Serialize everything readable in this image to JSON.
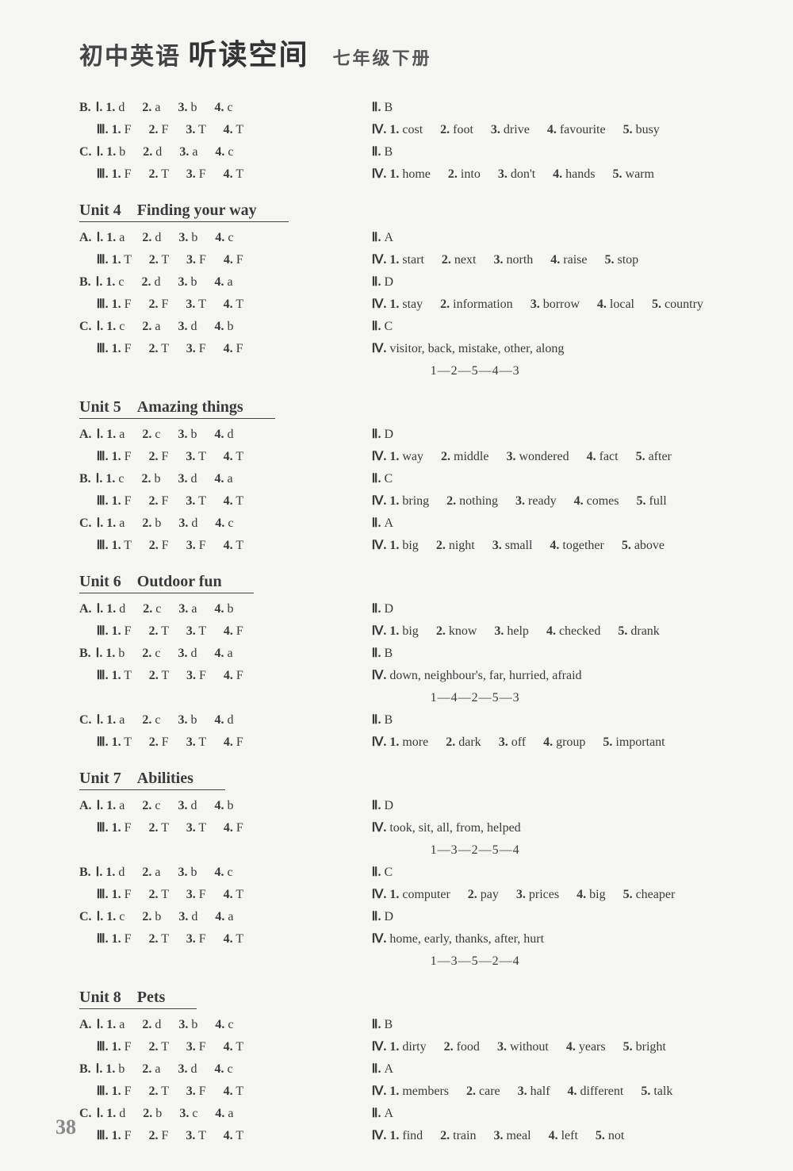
{
  "header": {
    "main_pre": "初中英语",
    "main_em": "听读空间",
    "sub": "七年级下册"
  },
  "page_number": "38",
  "pre_unit": {
    "left": [
      {
        "label": "B.",
        "roman": "Ⅰ.",
        "items": [
          "1. d",
          "2. a",
          "3. b",
          "4. c"
        ]
      },
      {
        "label": "",
        "roman": "Ⅲ.",
        "items": [
          "1. F",
          "2. F",
          "3. T",
          "4. T"
        ]
      },
      {
        "label": "C.",
        "roman": "Ⅰ.",
        "items": [
          "1. b",
          "2. d",
          "3. a",
          "4. c"
        ]
      },
      {
        "label": "",
        "roman": "Ⅲ.",
        "items": [
          "1. F",
          "2. T",
          "3. F",
          "4. T"
        ]
      }
    ],
    "right": [
      {
        "roman": "Ⅱ.",
        "text": "B"
      },
      {
        "roman": "Ⅳ.",
        "items": [
          "1. cost",
          "2. foot",
          "3. drive",
          "4. favourite",
          "5. busy"
        ]
      },
      {
        "roman": "Ⅱ.",
        "text": "B"
      },
      {
        "roman": "Ⅳ.",
        "items": [
          "1. home",
          "2. into",
          "3. don't",
          "4. hands",
          "5. warm"
        ]
      }
    ]
  },
  "units": [
    {
      "title": "Unit 4　Finding your way",
      "left": [
        {
          "label": "A.",
          "roman": "Ⅰ.",
          "items": [
            "1. a",
            "2. d",
            "3. b",
            "4. c"
          ]
        },
        {
          "label": "",
          "roman": "Ⅲ.",
          "items": [
            "1. T",
            "2. T",
            "3. F",
            "4. F"
          ]
        },
        {
          "label": "B.",
          "roman": "Ⅰ.",
          "items": [
            "1. c",
            "2. d",
            "3. b",
            "4. a"
          ]
        },
        {
          "label": "",
          "roman": "Ⅲ.",
          "items": [
            "1. F",
            "2. F",
            "3. T",
            "4. T"
          ]
        },
        {
          "label": "C.",
          "roman": "Ⅰ.",
          "items": [
            "1. c",
            "2. a",
            "3. d",
            "4. b"
          ]
        },
        {
          "label": "",
          "roman": "Ⅲ.",
          "items": [
            "1. F",
            "2. T",
            "3. F",
            "4. F"
          ]
        }
      ],
      "right": [
        {
          "roman": "Ⅱ.",
          "text": "A"
        },
        {
          "roman": "Ⅳ.",
          "items": [
            "1. start",
            "2. next",
            "3. north",
            "4. raise",
            "5. stop"
          ]
        },
        {
          "roman": "Ⅱ.",
          "text": "D"
        },
        {
          "roman": "Ⅳ.",
          "items": [
            "1. stay",
            "2. information",
            "3. borrow",
            "4. local",
            "5. country"
          ]
        },
        {
          "roman": "Ⅱ.",
          "text": "C"
        },
        {
          "roman": "Ⅳ.",
          "text": "visitor, back, mistake, other, along"
        },
        {
          "seq": "1—2—5—4—3"
        }
      ]
    },
    {
      "title": "Unit 5　Amazing things",
      "left": [
        {
          "label": "A.",
          "roman": "Ⅰ.",
          "items": [
            "1. a",
            "2. c",
            "3. b",
            "4. d"
          ]
        },
        {
          "label": "",
          "roman": "Ⅲ.",
          "items": [
            "1. F",
            "2. F",
            "3. T",
            "4. T"
          ]
        },
        {
          "label": "B.",
          "roman": "Ⅰ.",
          "items": [
            "1. c",
            "2. b",
            "3. d",
            "4. a"
          ]
        },
        {
          "label": "",
          "roman": "Ⅲ.",
          "items": [
            "1. F",
            "2. F",
            "3. T",
            "4. T"
          ]
        },
        {
          "label": "C.",
          "roman": "Ⅰ.",
          "items": [
            "1. a",
            "2. b",
            "3. d",
            "4. c"
          ]
        },
        {
          "label": "",
          "roman": "Ⅲ.",
          "items": [
            "1. T",
            "2. F",
            "3. F",
            "4. T"
          ]
        }
      ],
      "right": [
        {
          "roman": "Ⅱ.",
          "text": "D"
        },
        {
          "roman": "Ⅳ.",
          "items": [
            "1. way",
            "2. middle",
            "3. wondered",
            "4. fact",
            "5. after"
          ]
        },
        {
          "roman": "Ⅱ.",
          "text": "C"
        },
        {
          "roman": "Ⅳ.",
          "items": [
            "1. bring",
            "2. nothing",
            "3. ready",
            "4. comes",
            "5. full"
          ]
        },
        {
          "roman": "Ⅱ.",
          "text": "A"
        },
        {
          "roman": "Ⅳ.",
          "items": [
            "1. big",
            "2. night",
            "3. small",
            "4. together",
            "5. above"
          ]
        }
      ]
    },
    {
      "title": "Unit 6　Outdoor fun",
      "left": [
        {
          "label": "A.",
          "roman": "Ⅰ.",
          "items": [
            "1. d",
            "2. c",
            "3. a",
            "4. b"
          ]
        },
        {
          "label": "",
          "roman": "Ⅲ.",
          "items": [
            "1. F",
            "2. T",
            "3. T",
            "4. F"
          ]
        },
        {
          "label": "B.",
          "roman": "Ⅰ.",
          "items": [
            "1. b",
            "2. c",
            "3. d",
            "4. a"
          ]
        },
        {
          "label": "",
          "roman": "Ⅲ.",
          "items": [
            "1. T",
            "2. T",
            "3. F",
            "4. F"
          ]
        },
        {
          "spacer": true
        },
        {
          "label": "C.",
          "roman": "Ⅰ.",
          "items": [
            "1. a",
            "2. c",
            "3. b",
            "4. d"
          ]
        },
        {
          "label": "",
          "roman": "Ⅲ.",
          "items": [
            "1. T",
            "2. F",
            "3. T",
            "4. F"
          ]
        }
      ],
      "right": [
        {
          "roman": "Ⅱ.",
          "text": "D"
        },
        {
          "roman": "Ⅳ.",
          "items": [
            "1. big",
            "2. know",
            "3. help",
            "4. checked",
            "5. drank"
          ]
        },
        {
          "roman": "Ⅱ.",
          "text": "B"
        },
        {
          "roman": "Ⅳ.",
          "text": "down, neighbour's, far, hurried, afraid"
        },
        {
          "seq": "1—4—2—5—3"
        },
        {
          "roman": "Ⅱ.",
          "text": "B"
        },
        {
          "roman": "Ⅳ.",
          "items": [
            "1. more",
            "2. dark",
            "3. off",
            "4. group",
            "5. important"
          ]
        }
      ]
    },
    {
      "title": "Unit 7　Abilities",
      "left": [
        {
          "label": "A.",
          "roman": "Ⅰ.",
          "items": [
            "1. a",
            "2. c",
            "3. d",
            "4. b"
          ]
        },
        {
          "label": "",
          "roman": "Ⅲ.",
          "items": [
            "1. F",
            "2. T",
            "3. T",
            "4. F"
          ]
        },
        {
          "spacer": true
        },
        {
          "label": "B.",
          "roman": "Ⅰ.",
          "items": [
            "1. d",
            "2. a",
            "3. b",
            "4. c"
          ]
        },
        {
          "label": "",
          "roman": "Ⅲ.",
          "items": [
            "1. F",
            "2. T",
            "3. F",
            "4. T"
          ]
        },
        {
          "label": "C.",
          "roman": "Ⅰ.",
          "items": [
            "1. c",
            "2. b",
            "3. d",
            "4. a"
          ]
        },
        {
          "label": "",
          "roman": "Ⅲ.",
          "items": [
            "1. F",
            "2. T",
            "3. F",
            "4. T"
          ]
        }
      ],
      "right": [
        {
          "roman": "Ⅱ.",
          "text": "D"
        },
        {
          "roman": "Ⅳ.",
          "text": "took, sit, all, from, helped"
        },
        {
          "seq": "1—3—2—5—4"
        },
        {
          "roman": "Ⅱ.",
          "text": "C"
        },
        {
          "roman": "Ⅳ.",
          "items": [
            "1. computer",
            "2. pay",
            "3. prices",
            "4. big",
            "5. cheaper"
          ]
        },
        {
          "roman": "Ⅱ.",
          "text": "D"
        },
        {
          "roman": "Ⅳ.",
          "text": "home, early, thanks, after, hurt"
        },
        {
          "seq": "1—3—5—2—4"
        }
      ]
    },
    {
      "title": "Unit 8　Pets",
      "left": [
        {
          "label": "A.",
          "roman": "Ⅰ.",
          "items": [
            "1. a",
            "2. d",
            "3. b",
            "4. c"
          ]
        },
        {
          "label": "",
          "roman": "Ⅲ.",
          "items": [
            "1. F",
            "2. T",
            "3. F",
            "4. T"
          ]
        },
        {
          "label": "B.",
          "roman": "Ⅰ.",
          "items": [
            "1. b",
            "2. a",
            "3. d",
            "4. c"
          ]
        },
        {
          "label": "",
          "roman": "Ⅲ.",
          "items": [
            "1. F",
            "2. T",
            "3. F",
            "4. T"
          ]
        },
        {
          "label": "C.",
          "roman": "Ⅰ.",
          "items": [
            "1. d",
            "2. b",
            "3. c",
            "4. a"
          ]
        },
        {
          "label": "",
          "roman": "Ⅲ.",
          "items": [
            "1. F",
            "2. F",
            "3. T",
            "4. T"
          ]
        }
      ],
      "right": [
        {
          "roman": "Ⅱ.",
          "text": "B"
        },
        {
          "roman": "Ⅳ.",
          "items": [
            "1. dirty",
            "2. food",
            "3. without",
            "4. years",
            "5. bright"
          ]
        },
        {
          "roman": "Ⅱ.",
          "text": "A"
        },
        {
          "roman": "Ⅳ.",
          "items": [
            "1. members",
            "2. care",
            "3. half",
            "4. different",
            "5. talk"
          ]
        },
        {
          "roman": "Ⅱ.",
          "text": "A"
        },
        {
          "roman": "Ⅳ.",
          "items": [
            "1. find",
            "2. train",
            "3. meal",
            "4. left",
            "5. not"
          ]
        }
      ]
    }
  ]
}
